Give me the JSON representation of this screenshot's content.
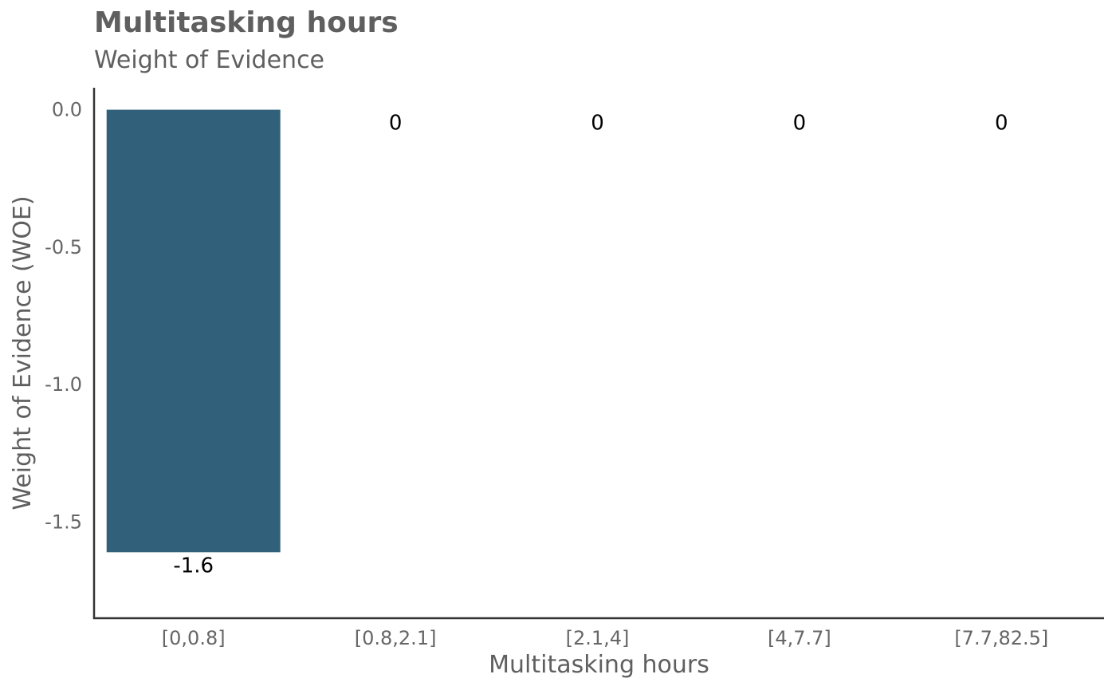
{
  "chart_data": {
    "type": "bar",
    "title": "Multitasking hours",
    "subtitle": "Weight of Evidence",
    "xlabel": "Multitasking hours",
    "ylabel": "Weight of Evidence (WOE)",
    "categories": [
      "[0,0.8]",
      "[0.8,2.1]",
      "[2.1,4]",
      "[4,7.7]",
      "[7.7,82.5]"
    ],
    "values": [
      -1.61,
      0,
      0,
      0,
      0
    ],
    "data_labels": [
      "-1.6",
      "0",
      "0",
      "0",
      "0"
    ],
    "yticks": [
      0.0,
      -0.5,
      -1.0,
      -1.5
    ],
    "ytick_labels": [
      "0.0",
      "-0.5",
      "-1.0",
      "-1.5"
    ],
    "ylim": [
      -1.85,
      0.08
    ],
    "grid": false,
    "bar_color": "#31607b"
  }
}
